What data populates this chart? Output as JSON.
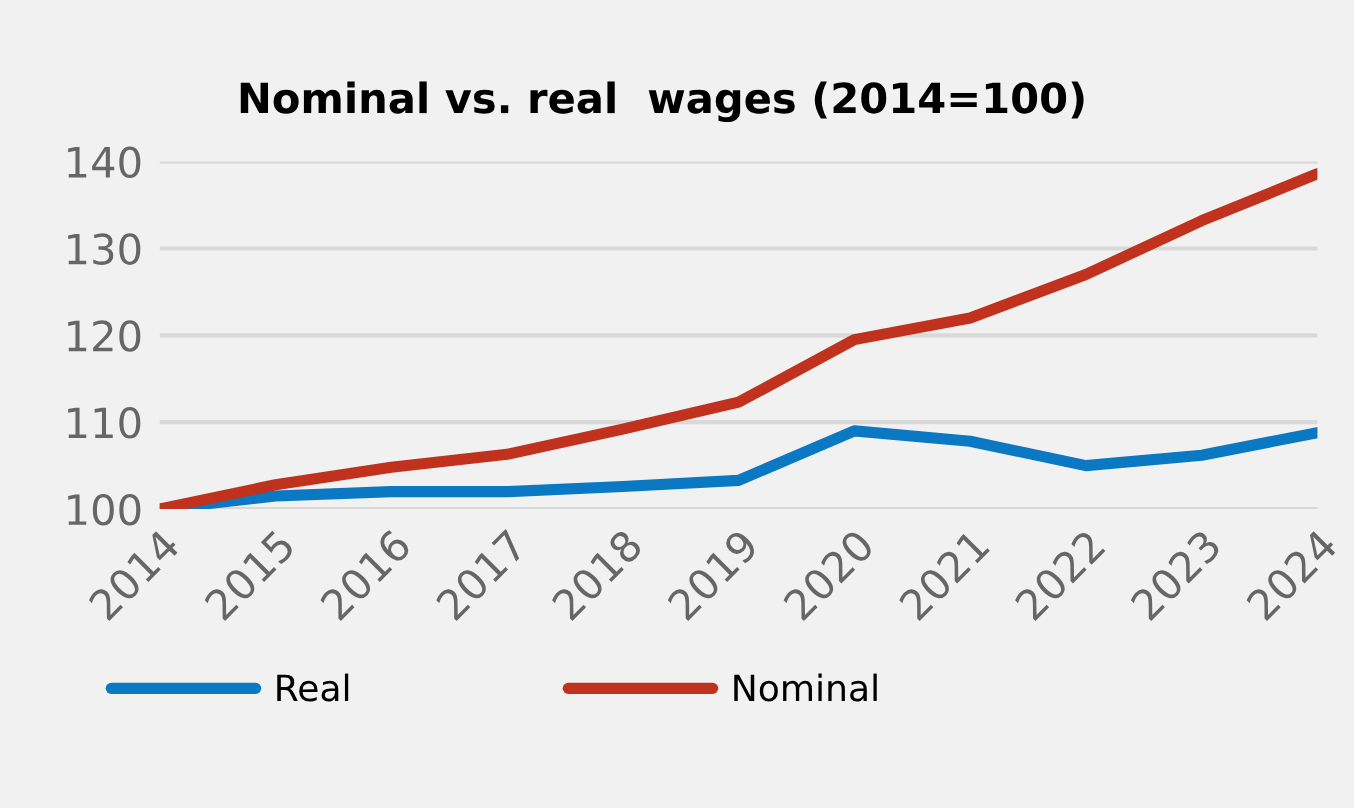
{
  "chart_data": {
    "type": "line",
    "title": "Nominal vs. real  wages (2014=100)",
    "categories": [
      "2014",
      "2015",
      "2016",
      "2017",
      "2018",
      "2019",
      "2020",
      "2021",
      "2022",
      "2023",
      "2024"
    ],
    "series": [
      {
        "name": "Real",
        "color": "#0a78c2",
        "values": [
          100,
          101.5,
          102,
          102,
          102.6,
          103.3,
          109,
          107.8,
          105,
          106.2,
          108.8
        ]
      },
      {
        "name": "Nominal",
        "color": "#c0321e",
        "values": [
          100,
          102.8,
          104.8,
          106.3,
          109.2,
          112.3,
          119.5,
          122,
          127,
          133.2,
          138.6
        ]
      }
    ],
    "ylim": [
      100,
      140
    ],
    "yticks": [
      100,
      110,
      120,
      130,
      140
    ],
    "grid": "y",
    "legend": "bottom",
    "marker": "none",
    "line_style": "solid"
  }
}
